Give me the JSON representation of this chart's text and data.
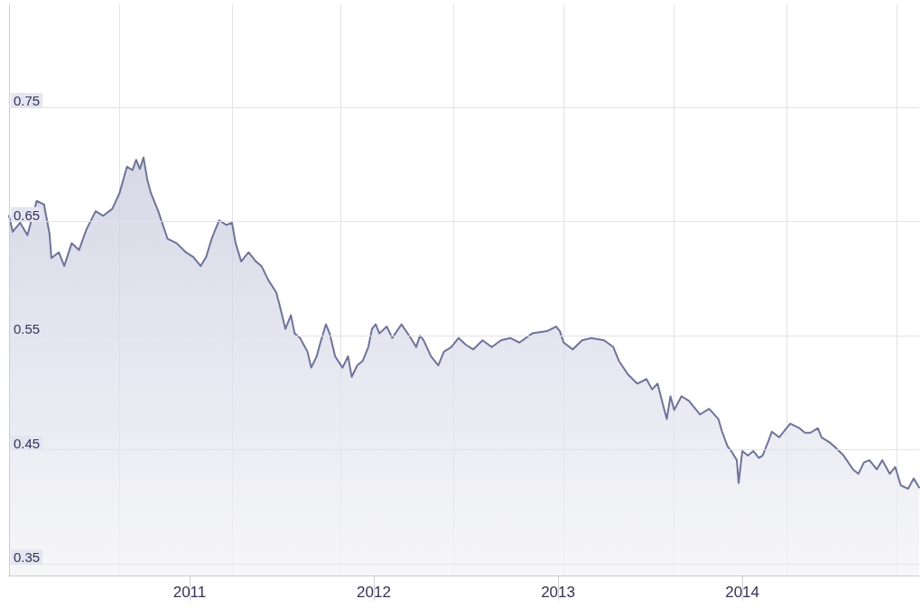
{
  "chart_data": {
    "type": "area",
    "color": "#6e7399",
    "x": [
      2010.02,
      2010.04,
      2010.08,
      2010.12,
      2010.17,
      2010.21,
      2010.24,
      2010.25,
      2010.29,
      2010.32,
      2010.36,
      2010.4,
      2010.44,
      2010.49,
      2010.53,
      2010.58,
      2010.62,
      2010.66,
      2010.69,
      2010.71,
      2010.73,
      2010.75,
      2010.77,
      2010.79,
      2010.83,
      2010.88,
      2010.93,
      2010.98,
      2011.02,
      2011.06,
      2011.09,
      2011.12,
      2011.16,
      2011.2,
      2011.23,
      2011.25,
      2011.28,
      2011.32,
      2011.36,
      2011.39,
      2011.43,
      2011.47,
      2011.49,
      2011.52,
      2011.55,
      2011.57,
      2011.6,
      2011.64,
      2011.66,
      2011.69,
      2011.71,
      2011.74,
      2011.76,
      2011.79,
      2011.83,
      2011.86,
      2011.88,
      2011.91,
      2011.94,
      2011.97,
      2011.99,
      2012.01,
      2012.03,
      2012.07,
      2012.1,
      2012.15,
      2012.2,
      2012.23,
      2012.25,
      2012.27,
      2012.31,
      2012.35,
      2012.38,
      2012.42,
      2012.46,
      2012.5,
      2012.54,
      2012.59,
      2012.64,
      2012.69,
      2012.74,
      2012.79,
      2012.86,
      2012.94,
      2012.99,
      2013.01,
      2013.03,
      2013.08,
      2013.13,
      2013.18,
      2013.25,
      2013.3,
      2013.33,
      2013.38,
      2013.43,
      2013.48,
      2013.51,
      2013.54,
      2013.57,
      2013.59,
      2013.61,
      2013.63,
      2013.67,
      2013.71,
      2013.75,
      2013.77,
      2013.82,
      2013.87,
      2013.89,
      2013.92,
      2013.94,
      2013.97,
      2013.98,
      2014.0,
      2014.03,
      2014.06,
      2014.09,
      2014.11,
      2014.14,
      2014.16,
      2014.2,
      2014.24,
      2014.26,
      2014.31,
      2014.34,
      2014.37,
      2014.41,
      2014.43,
      2014.47,
      2014.5,
      2014.55,
      2014.6,
      2014.63,
      2014.66,
      2014.69,
      2014.73,
      2014.76,
      2014.8,
      2014.83,
      2014.86,
      2014.9,
      2014.93,
      2014.96
    ],
    "values": [
      0.655,
      0.641,
      0.649,
      0.638,
      0.668,
      0.665,
      0.639,
      0.618,
      0.623,
      0.611,
      0.631,
      0.625,
      0.643,
      0.659,
      0.655,
      0.661,
      0.675,
      0.698,
      0.695,
      0.704,
      0.696,
      0.706,
      0.687,
      0.675,
      0.659,
      0.635,
      0.631,
      0.623,
      0.619,
      0.611,
      0.619,
      0.635,
      0.651,
      0.647,
      0.649,
      0.631,
      0.615,
      0.623,
      0.615,
      0.611,
      0.598,
      0.588,
      0.576,
      0.556,
      0.568,
      0.552,
      0.548,
      0.536,
      0.522,
      0.532,
      0.544,
      0.56,
      0.552,
      0.532,
      0.522,
      0.532,
      0.514,
      0.524,
      0.528,
      0.54,
      0.556,
      0.56,
      0.552,
      0.558,
      0.548,
      0.56,
      0.548,
      0.54,
      0.55,
      0.546,
      0.532,
      0.524,
      0.536,
      0.54,
      0.548,
      0.542,
      0.538,
      0.546,
      0.54,
      0.546,
      0.548,
      0.544,
      0.552,
      0.554,
      0.558,
      0.554,
      0.544,
      0.538,
      0.546,
      0.548,
      0.546,
      0.54,
      0.528,
      0.516,
      0.508,
      0.512,
      0.503,
      0.508,
      0.489,
      0.477,
      0.497,
      0.485,
      0.497,
      0.493,
      0.485,
      0.481,
      0.486,
      0.477,
      0.466,
      0.453,
      0.449,
      0.441,
      0.421,
      0.449,
      0.445,
      0.449,
      0.443,
      0.445,
      0.457,
      0.466,
      0.461,
      0.469,
      0.473,
      0.469,
      0.465,
      0.465,
      0.469,
      0.461,
      0.457,
      0.453,
      0.445,
      0.433,
      0.429,
      0.439,
      0.441,
      0.433,
      0.441,
      0.429,
      0.435,
      0.419,
      0.416,
      0.425,
      0.417
    ],
    "xlim": [
      2010.02,
      2014.96
    ],
    "xticks": [
      {
        "value": 2010.62,
        "label": null
      },
      2011,
      {
        "value": 2011.23,
        "label": null
      },
      {
        "value": 2011.82,
        "label": null
      },
      2012,
      {
        "value": 2012.43,
        "label": null
      },
      2013,
      {
        "value": 2013.03,
        "label": null
      },
      {
        "value": 2013.63,
        "label": null
      },
      2014,
      {
        "value": 2014.24,
        "label": null
      },
      {
        "value": 2014.84,
        "label": null
      }
    ],
    "ylim": [
      0.34,
      0.84
    ],
    "yticks": [
      0.35,
      0.45,
      0.55,
      0.65,
      0.75
    ],
    "grid": true,
    "marker": "none",
    "line_style": "solid"
  }
}
